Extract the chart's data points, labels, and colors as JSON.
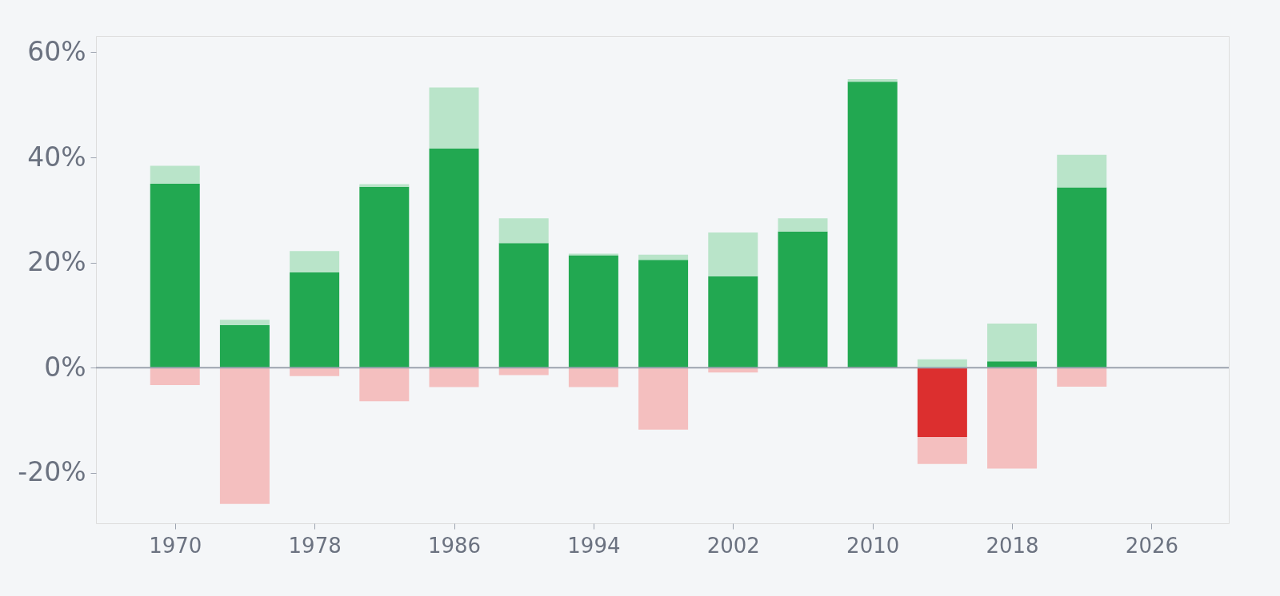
{
  "chart_data": {
    "type": "bar",
    "stacked": true,
    "x": [
      1970,
      1974,
      1978,
      1982,
      1986,
      1990,
      1994,
      1998,
      2002,
      2006,
      2010,
      2014,
      2018,
      2022
    ],
    "series": [
      {
        "colors": [
          "#22a851",
          "#22a851",
          "#22a851",
          "#22a851",
          "#22a851",
          "#22a851",
          "#22a851",
          "#22a851",
          "#22a851",
          "#22a851",
          "#22a851",
          "#dc2f2f",
          "#22a851",
          "#22a851"
        ],
        "values": [
          35.0,
          8.1,
          18.1,
          34.4,
          41.7,
          23.7,
          21.4,
          20.5,
          17.4,
          25.9,
          54.4,
          -13.2,
          1.2,
          34.3
        ]
      },
      {
        "color": "#b9e4c9",
        "values": [
          3.4,
          1.0,
          4.1,
          0.5,
          11.6,
          4.7,
          0.3,
          1.0,
          8.3,
          2.5,
          0.5,
          1.6,
          7.2,
          6.2
        ]
      },
      {
        "color": "#f4bfbf",
        "values": [
          -3.3,
          -25.9,
          -1.6,
          -6.4,
          -3.7,
          -1.4,
          -3.7,
          -11.8,
          -0.9,
          null,
          null,
          -5.1,
          -19.2,
          -3.6
        ]
      }
    ],
    "xlim": [
      1965.7,
      2030.2
    ],
    "xticks": [
      1970,
      1978,
      1986,
      1994,
      2002,
      2010,
      2018,
      2026
    ],
    "ylim": [
      -29.6,
      63.1
    ],
    "yticks": [
      {
        "value": -20,
        "label": "-20%"
      },
      {
        "value": 0,
        "label": "0%"
      },
      {
        "value": 20,
        "label": "20%"
      },
      {
        "value": 40,
        "label": "40%"
      },
      {
        "value": 60,
        "label": "60%"
      }
    ],
    "ref_lines": [
      {
        "axis": "y",
        "value": 0,
        "color": "#9ca3af"
      }
    ],
    "grid": false
  }
}
